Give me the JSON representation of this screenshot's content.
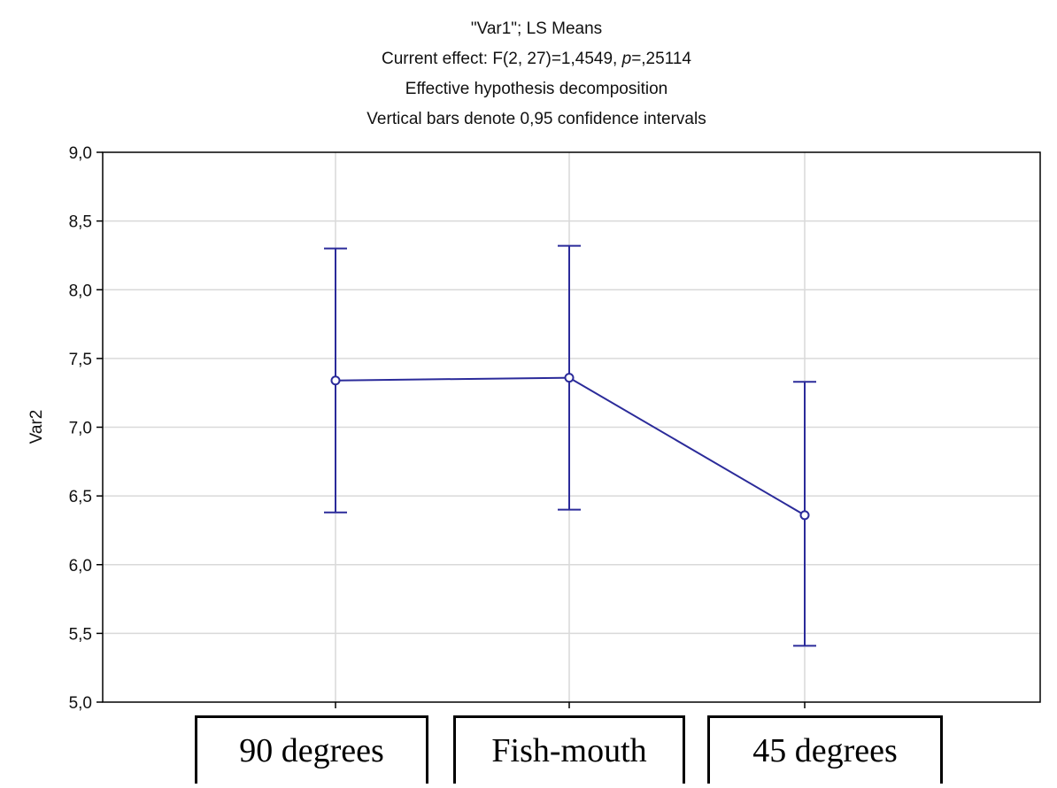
{
  "chart_data": {
    "type": "line",
    "title_lines": [
      "\"Var1\"; LS Means",
      "Current effect: F(2, 27)=1,4549, ",
      "p",
      "=,25114",
      "Effective hypothesis decomposition",
      "Vertical bars denote 0,95 confidence intervals"
    ],
    "ylabel": "Var2",
    "ylim": [
      5.0,
      9.0
    ],
    "y_ticks": [
      "5,0",
      "5,5",
      "6,0",
      "6,5",
      "7,0",
      "7,5",
      "8,0",
      "8,5",
      "9,0"
    ],
    "categories": [
      "90 degrees",
      "Fish-mouth",
      "45 degrees"
    ],
    "series": [
      {
        "values": [
          7.34,
          7.36,
          6.36
        ],
        "ci_lower": [
          6.38,
          6.4,
          5.41
        ],
        "ci_upper": [
          8.3,
          8.32,
          7.33
        ]
      }
    ],
    "grid": true,
    "line_color": "#2b2b9a"
  }
}
